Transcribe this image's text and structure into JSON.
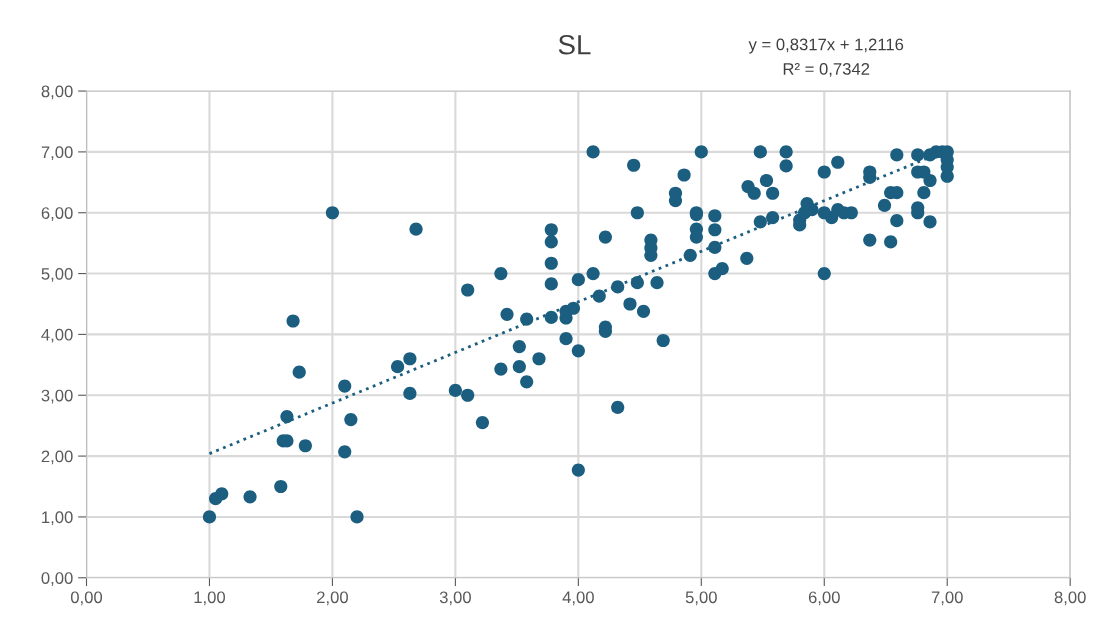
{
  "chart_data": {
    "type": "scatter",
    "title": "SL",
    "annotations": [
      "y = 0,8317x + 1,2116",
      "R² = 0,7342"
    ],
    "xlim": [
      0,
      8
    ],
    "ylim": [
      0,
      8
    ],
    "xticks": [
      {
        "value": 0,
        "label": "0,00"
      },
      {
        "value": 1,
        "label": "1,00"
      },
      {
        "value": 2,
        "label": "2,00"
      },
      {
        "value": 3,
        "label": "3,00"
      },
      {
        "value": 4,
        "label": "4,00"
      },
      {
        "value": 5,
        "label": "5,00"
      },
      {
        "value": 6,
        "label": "6,00"
      },
      {
        "value": 7,
        "label": "7,00"
      },
      {
        "value": 8,
        "label": "8,00"
      }
    ],
    "yticks": [
      {
        "value": 0,
        "label": "0,00"
      },
      {
        "value": 1,
        "label": "1,00"
      },
      {
        "value": 2,
        "label": "2,00"
      },
      {
        "value": 3,
        "label": "3,00"
      },
      {
        "value": 4,
        "label": "4,00"
      },
      {
        "value": 5,
        "label": "5,00"
      },
      {
        "value": 6,
        "label": "6,00"
      },
      {
        "value": 7,
        "label": "7,00"
      },
      {
        "value": 8,
        "label": "8,00"
      }
    ],
    "grid": true,
    "marker": "circle",
    "legend": false,
    "series": [
      {
        "color": "#1b5e80",
        "x": [
          1.0,
          1.05,
          1.1,
          1.33,
          1.58,
          1.6,
          1.63,
          1.63,
          1.68,
          1.73,
          1.78,
          2.0,
          2.1,
          2.1,
          2.15,
          2.2,
          2.53,
          2.63,
          2.63,
          2.68,
          3.0,
          3.1,
          3.1,
          3.22,
          3.37,
          3.37,
          3.42,
          3.52,
          3.52,
          3.58,
          3.58,
          3.68,
          3.78,
          3.78,
          3.78,
          3.78,
          3.78,
          3.9,
          3.9,
          3.9,
          3.96,
          4.0,
          4.0,
          4.0,
          4.12,
          4.12,
          4.17,
          4.22,
          4.22,
          4.22,
          4.32,
          4.32,
          4.42,
          4.45,
          4.48,
          4.48,
          4.53,
          4.59,
          4.59,
          4.59,
          4.64,
          4.69,
          4.79,
          4.79,
          4.86,
          4.91,
          4.96,
          4.96,
          4.96,
          4.96,
          5.0,
          5.11,
          5.11,
          5.11,
          5.11,
          5.17,
          5.37,
          5.38,
          5.43,
          5.48,
          5.48,
          5.53,
          5.58,
          5.58,
          5.69,
          5.69,
          5.8,
          5.8,
          5.86,
          5.84,
          5.9,
          6.0,
          6.0,
          6.0,
          6.06,
          6.11,
          6.11,
          6.16,
          6.22,
          6.37,
          6.37,
          6.37,
          6.49,
          6.54,
          6.54,
          6.59,
          6.59,
          6.59,
          6.76,
          6.76,
          6.76,
          6.76,
          6.81,
          6.81,
          6.86,
          6.86,
          6.86,
          6.91,
          6.96,
          7.0,
          7.0,
          7.0,
          7.0
        ],
        "values": [
          1.0,
          1.3,
          1.38,
          1.33,
          1.5,
          2.25,
          2.25,
          2.65,
          4.22,
          3.38,
          2.17,
          6.0,
          2.07,
          3.15,
          2.6,
          1.0,
          3.47,
          3.6,
          3.03,
          5.73,
          3.08,
          3.0,
          4.73,
          2.55,
          3.43,
          5.0,
          4.33,
          3.8,
          3.47,
          3.22,
          4.25,
          3.6,
          5.72,
          5.52,
          5.17,
          4.83,
          4.28,
          4.27,
          4.38,
          3.93,
          4.43,
          4.9,
          3.73,
          1.77,
          7.0,
          5.0,
          4.63,
          4.12,
          4.05,
          5.6,
          4.78,
          2.8,
          4.5,
          6.78,
          6.0,
          4.85,
          4.38,
          5.55,
          5.42,
          5.3,
          4.85,
          3.9,
          6.2,
          6.32,
          6.62,
          5.3,
          6.0,
          5.97,
          5.73,
          5.6,
          7.0,
          5.95,
          5.72,
          5.43,
          5.0,
          5.08,
          5.25,
          6.43,
          6.32,
          7.0,
          5.85,
          6.53,
          6.32,
          5.92,
          7.0,
          6.77,
          5.8,
          5.88,
          6.15,
          6.0,
          6.05,
          5.0,
          6.67,
          6.0,
          5.92,
          6.83,
          6.05,
          6.0,
          6.0,
          5.55,
          6.58,
          6.67,
          6.12,
          5.52,
          6.33,
          6.33,
          5.87,
          6.95,
          6.67,
          6.95,
          6.08,
          6.0,
          6.67,
          6.33,
          6.53,
          5.85,
          6.95,
          7.0,
          7.0,
          7.0,
          6.87,
          6.75,
          6.6
        ]
      },
      {
        "type": "line",
        "color": "#1b5e80",
        "line_style": "dotted",
        "marker": "none",
        "x": [
          1,
          7
        ],
        "values": [
          2.04,
          7.03
        ]
      }
    ]
  }
}
